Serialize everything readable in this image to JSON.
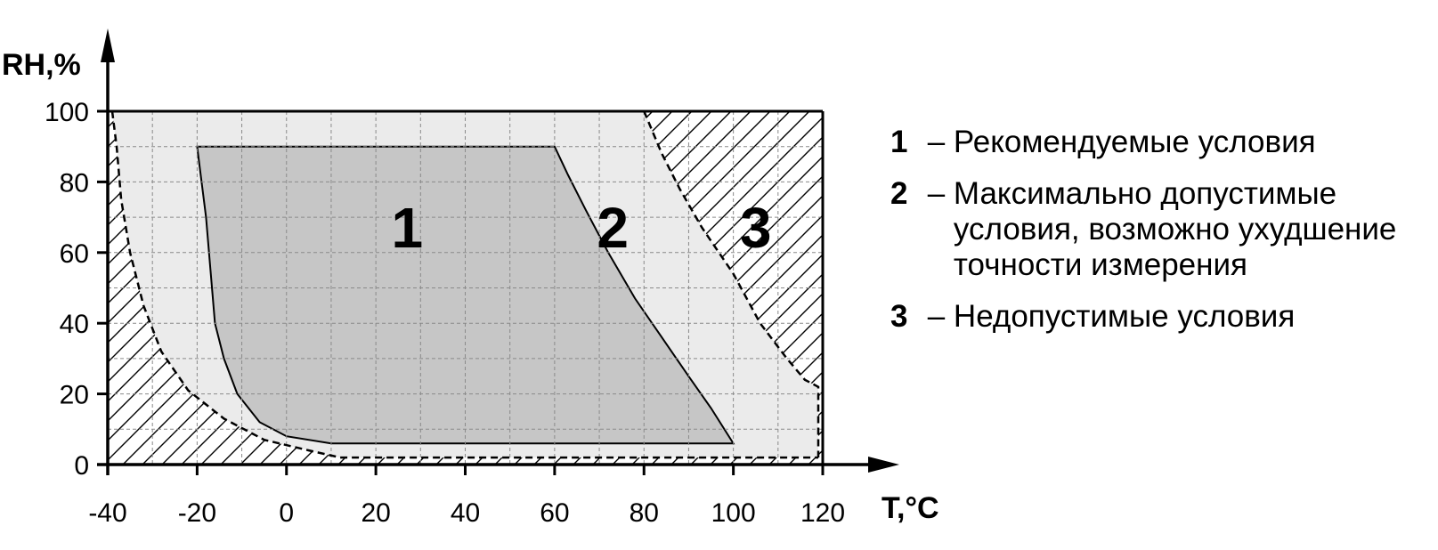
{
  "chart_data": {
    "type": "area",
    "xlabel": "T,°C",
    "ylabel": "RH,%",
    "xlim": [
      -40,
      120
    ],
    "ylim": [
      0,
      100
    ],
    "x_ticks": [
      -40,
      -20,
      0,
      20,
      40,
      60,
      80,
      100,
      120
    ],
    "y_ticks": [
      0,
      20,
      40,
      60,
      80,
      100
    ],
    "x_tick_labels": [
      "-40",
      "-20",
      "0",
      "20",
      "40",
      "60",
      "80",
      "100",
      "120"
    ],
    "y_tick_labels": [
      "0",
      "20",
      "40",
      "60",
      "80",
      "100"
    ],
    "grid": true,
    "zones": [
      {
        "id": "1",
        "label": "1",
        "fill": "#c0c0c0",
        "label_at": [
          27,
          67
        ],
        "boundary": [
          [
            -20,
            90
          ],
          [
            60,
            90
          ],
          [
            63,
            82
          ],
          [
            67,
            72
          ],
          [
            72,
            60
          ],
          [
            78,
            47
          ],
          [
            84,
            36
          ],
          [
            90,
            25
          ],
          [
            95,
            16
          ],
          [
            100,
            6
          ],
          [
            10,
            6
          ],
          [
            0,
            8
          ],
          [
            -6,
            12
          ],
          [
            -11,
            20
          ],
          [
            -14,
            30
          ],
          [
            -16,
            40
          ],
          [
            -17,
            55
          ],
          [
            -18,
            70
          ],
          [
            -20,
            90
          ]
        ]
      },
      {
        "id": "2",
        "label": "2",
        "fill": "#ebebeb",
        "label_at": [
          73,
          67
        ],
        "upper_right_boundary": [
          [
            80,
            100
          ],
          [
            84,
            88
          ],
          [
            88,
            78
          ],
          [
            93,
            67
          ],
          [
            100,
            54
          ],
          [
            106,
            40
          ],
          [
            112,
            30
          ],
          [
            116,
            24
          ],
          [
            119,
            22
          ],
          [
            119,
            2
          ]
        ],
        "lower_left_boundary": [
          [
            -39,
            100
          ],
          [
            -38,
            90
          ],
          [
            -37,
            75
          ],
          [
            -35,
            60
          ],
          [
            -32,
            45
          ],
          [
            -28,
            32
          ],
          [
            -22,
            21
          ],
          [
            -14,
            13
          ],
          [
            -5,
            7
          ],
          [
            5,
            4
          ],
          [
            12,
            2
          ],
          [
            119,
            2
          ]
        ]
      },
      {
        "id": "3",
        "label": "3",
        "fill": "hatch",
        "label_at": [
          105,
          67
        ]
      }
    ]
  },
  "legend": {
    "items": [
      {
        "key": "1",
        "dash": " – ",
        "text": "Рекомендуемые условия"
      },
      {
        "key": "2",
        "dash": " – ",
        "text": "Максимально допустимые условия, возможно ухудшение точности измерения"
      },
      {
        "key": "3",
        "dash": " – ",
        "text": "Недопустимые условия"
      }
    ]
  }
}
